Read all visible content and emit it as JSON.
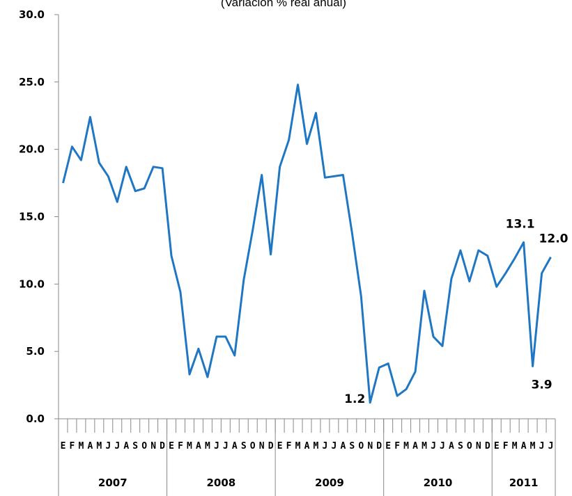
{
  "chart_data": {
    "type": "line",
    "subtitle": "(Variación % real anual)",
    "ylim": [
      0,
      30
    ],
    "yticks": [
      "0.0",
      "5.0",
      "10.0",
      "15.0",
      "20.0",
      "25.0",
      "30.0"
    ],
    "line_color": "#1f77c4",
    "month_labels": [
      "E",
      "F",
      "M",
      "A",
      "M",
      "J",
      "J",
      "A",
      "S",
      "O",
      "N",
      "D",
      "E",
      "F",
      "M",
      "A",
      "M",
      "J",
      "J",
      "A",
      "S",
      "O",
      "N",
      "D",
      "E",
      "F",
      "M",
      "A",
      "M",
      "J",
      "J",
      "A",
      "S",
      "O",
      "N",
      "D",
      "E",
      "F",
      "M",
      "A",
      "M",
      "J",
      "J",
      "A",
      "S",
      "O",
      "N",
      "D",
      "E",
      "F",
      "M",
      "A",
      "M",
      "J",
      "J"
    ],
    "years": [
      {
        "label": "2007",
        "months": 12
      },
      {
        "label": "2008",
        "months": 12
      },
      {
        "label": "2009",
        "months": 12
      },
      {
        "label": "2010",
        "months": 12
      },
      {
        "label": "2011",
        "months": 7
      }
    ],
    "series": [
      {
        "values": [
          17.5,
          20.2,
          19.2,
          22.4,
          19.0,
          18.0,
          16.1,
          18.7,
          16.9,
          17.1,
          18.7,
          18.6,
          12.1,
          9.4,
          3.3,
          5.2,
          3.1,
          6.1,
          6.1,
          4.7,
          10.3,
          14.0,
          18.1,
          12.2,
          18.7,
          20.7,
          24.8,
          20.4,
          22.7,
          17.9,
          18.0,
          18.1,
          13.8,
          9.1,
          1.2,
          3.8,
          4.1,
          1.7,
          2.2,
          3.5,
          9.5,
          6.1,
          5.4,
          10.4,
          12.5,
          10.2,
          12.5,
          12.1,
          9.8,
          10.8,
          11.9,
          13.1,
          3.9,
          10.8,
          12.0
        ]
      }
    ],
    "data_labels": [
      {
        "index": 34,
        "text": "1.2"
      },
      {
        "index": 51,
        "text": "13.1"
      },
      {
        "index": 52,
        "text": "3.9"
      },
      {
        "index": 54,
        "text": "12.0"
      }
    ]
  }
}
